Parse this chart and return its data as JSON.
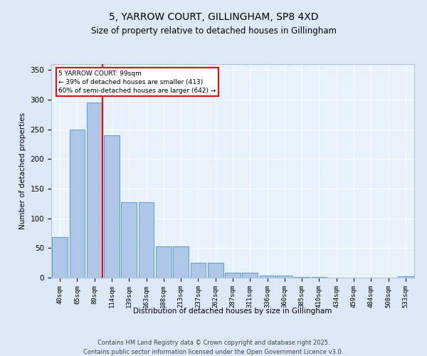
{
  "title1": "5, YARROW COURT, GILLINGHAM, SP8 4XD",
  "title2": "Size of property relative to detached houses in Gillingham",
  "xlabel": "Distribution of detached houses by size in Gillingham",
  "ylabel": "Number of detached properties",
  "categories": [
    "40sqm",
    "65sqm",
    "89sqm",
    "114sqm",
    "139sqm",
    "163sqm",
    "188sqm",
    "213sqm",
    "237sqm",
    "262sqm",
    "287sqm",
    "311sqm",
    "336sqm",
    "360sqm",
    "385sqm",
    "410sqm",
    "434sqm",
    "459sqm",
    "484sqm",
    "508sqm",
    "533sqm"
  ],
  "values": [
    68,
    250,
    295,
    240,
    127,
    127,
    53,
    53,
    25,
    25,
    9,
    9,
    4,
    4,
    1,
    1,
    0,
    0,
    0,
    0,
    2
  ],
  "bar_color": "#aec6e8",
  "bar_edge_color": "#5a9fd4",
  "redline_label": "5 YARROW COURT: 99sqm",
  "annotation_line1": "← 39% of detached houses are smaller (413)",
  "annotation_line2": "60% of semi-detached houses are larger (642) →",
  "ylim": [
    0,
    360
  ],
  "yticks": [
    0,
    50,
    100,
    150,
    200,
    250,
    300,
    350
  ],
  "footer1": "Contains HM Land Registry data © Crown copyright and database right 2025.",
  "footer2": "Contains public sector information licensed under the Open Government Licence v3.0.",
  "bg_color": "#dce8f5",
  "plot_bg_color": "#e8f2fc"
}
